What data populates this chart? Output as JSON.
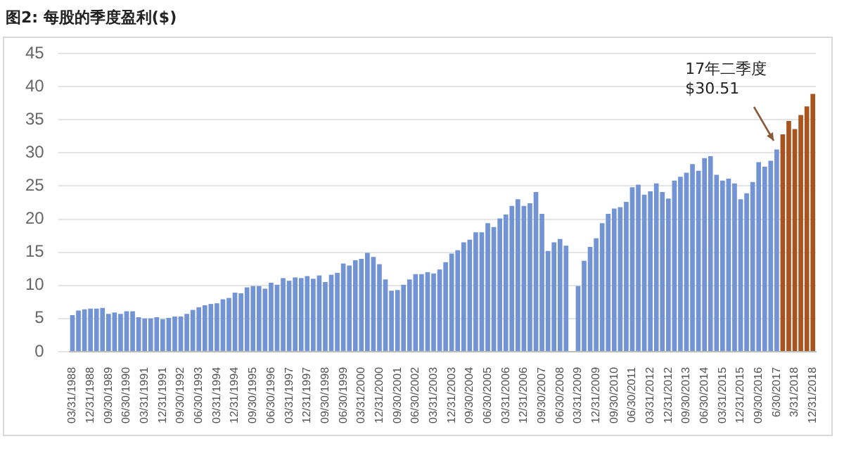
{
  "chart_data": {
    "type": "bar",
    "title": "图2: 每股的季度盈利($)",
    "categories": [
      "03/31/1988",
      null,
      null,
      "12/31/1988",
      null,
      null,
      "09/30/1989",
      null,
      null,
      "06/30/1990",
      null,
      null,
      "03/31/1991",
      null,
      null,
      "12/31/1991",
      null,
      null,
      "09/30/1992",
      null,
      null,
      "06/30/1993",
      null,
      null,
      "03/31/1994",
      null,
      null,
      "12/31/1994",
      null,
      null,
      "09/30/1995",
      null,
      null,
      "06/30/1996",
      null,
      null,
      "03/31/1997",
      null,
      null,
      "12/31/1997",
      null,
      null,
      "09/30/1998",
      null,
      null,
      "06/30/1999",
      null,
      null,
      "03/31/2000",
      null,
      null,
      "12/31/2000",
      null,
      null,
      "09/30/2001",
      null,
      null,
      "06/30/2002",
      null,
      null,
      "03/31/2003",
      null,
      null,
      "12/31/2003",
      null,
      null,
      "09/30/2004",
      null,
      null,
      "06/30/2005",
      null,
      null,
      "03/31/2006",
      null,
      null,
      "12/31/2006",
      null,
      null,
      "09/30/2007",
      null,
      null,
      "06/30/2008",
      null,
      null,
      "03/31/2009",
      null,
      null,
      "12/31/2009",
      null,
      null,
      "09/30/2010",
      null,
      null,
      "06/30/2011",
      null,
      null,
      "03/31/2012",
      null,
      null,
      "12/31/2012",
      null,
      null,
      "09/30/2013",
      null,
      null,
      "06/30/2014",
      null,
      null,
      "03/31/2015",
      null,
      null,
      "12/31/2015",
      null,
      null,
      "09/30/2016",
      null,
      null,
      "6/30/2017",
      null,
      null,
      "3/31/2018",
      null,
      null,
      "12/31/2018"
    ],
    "values": [
      5.5,
      6.2,
      6.4,
      6.5,
      6.5,
      6.6,
      5.7,
      5.9,
      5.7,
      6.1,
      6.1,
      5.2,
      5.0,
      5.0,
      5.2,
      4.9,
      5.1,
      5.3,
      5.3,
      5.7,
      6.3,
      6.7,
      7.0,
      7.2,
      7.3,
      7.9,
      8.1,
      8.9,
      8.8,
      9.7,
      9.9,
      9.9,
      9.5,
      10.4,
      10.1,
      11.1,
      10.7,
      11.2,
      11.1,
      11.4,
      11.0,
      11.5,
      10.5,
      11.6,
      11.9,
      13.3,
      13.0,
      13.8,
      14.0,
      14.9,
      14.3,
      13.2,
      10.9,
      9.2,
      9.3,
      10.1,
      10.9,
      11.7,
      11.7,
      12.0,
      11.8,
      12.4,
      13.5,
      14.8,
      15.3,
      16.5,
      16.9,
      18.0,
      18.0,
      19.4,
      18.8,
      20.1,
      20.7,
      22.0,
      23.0,
      22.0,
      22.4,
      24.1,
      20.8,
      15.2,
      16.5,
      17.0,
      16.0,
      null,
      9.9,
      13.7,
      15.8,
      17.1,
      19.4,
      20.8,
      21.6,
      21.8,
      22.6,
      24.8,
      25.2,
      23.7,
      24.2,
      25.4,
      24.1,
      23.1,
      25.8,
      26.4,
      27.0,
      28.3,
      27.3,
      29.2,
      29.5,
      26.7,
      25.8,
      26.1,
      25.4,
      23.0,
      23.9,
      25.6,
      28.6,
      27.9,
      28.8,
      30.51,
      32.8,
      34.8,
      33.6,
      35.7,
      37.0,
      38.9
    ],
    "colors": [
      "#7394d4",
      "#7394d4",
      "#7394d4",
      "#7394d4",
      "#7394d4",
      "#7394d4",
      "#7394d4",
      "#7394d4",
      "#7394d4",
      "#7394d4",
      "#7394d4",
      "#7394d4",
      "#7394d4",
      "#7394d4",
      "#7394d4",
      "#7394d4",
      "#7394d4",
      "#7394d4",
      "#7394d4",
      "#7394d4",
      "#7394d4",
      "#7394d4",
      "#7394d4",
      "#7394d4",
      "#7394d4",
      "#7394d4",
      "#7394d4",
      "#7394d4",
      "#7394d4",
      "#7394d4",
      "#7394d4",
      "#7394d4",
      "#7394d4",
      "#7394d4",
      "#7394d4",
      "#7394d4",
      "#7394d4",
      "#7394d4",
      "#7394d4",
      "#7394d4",
      "#7394d4",
      "#7394d4",
      "#7394d4",
      "#7394d4",
      "#7394d4",
      "#7394d4",
      "#7394d4",
      "#7394d4",
      "#7394d4",
      "#7394d4",
      "#7394d4",
      "#7394d4",
      "#7394d4",
      "#7394d4",
      "#7394d4",
      "#7394d4",
      "#7394d4",
      "#7394d4",
      "#7394d4",
      "#7394d4",
      "#7394d4",
      "#7394d4",
      "#7394d4",
      "#7394d4",
      "#7394d4",
      "#7394d4",
      "#7394d4",
      "#7394d4",
      "#7394d4",
      "#7394d4",
      "#7394d4",
      "#7394d4",
      "#7394d4",
      "#7394d4",
      "#7394d4",
      "#7394d4",
      "#7394d4",
      "#7394d4",
      "#7394d4",
      "#7394d4",
      "#7394d4",
      "#7394d4",
      "#7394d4",
      "#7394d4",
      "#7394d4",
      "#7394d4",
      "#7394d4",
      "#7394d4",
      "#7394d4",
      "#7394d4",
      "#7394d4",
      "#7394d4",
      "#7394d4",
      "#7394d4",
      "#7394d4",
      "#7394d4",
      "#7394d4",
      "#7394d4",
      "#7394d4",
      "#7394d4",
      "#7394d4",
      "#7394d4",
      "#7394d4",
      "#7394d4",
      "#7394d4",
      "#7394d4",
      "#7394d4",
      "#7394d4",
      "#7394d4",
      "#7394d4",
      "#7394d4",
      "#7394d4",
      "#7394d4",
      "#7394d4",
      "#7394d4",
      "#7394d4",
      "#7394d4",
      "#7394d4",
      "#a9531f",
      "#a9531f",
      "#a9531f",
      "#a9531f",
      "#a9531f",
      "#a9531f"
    ],
    "ylim": [
      0,
      45
    ],
    "yticks": [
      0,
      5,
      10,
      15,
      20,
      25,
      30,
      35,
      40,
      45
    ],
    "grid": "y",
    "legend": false,
    "annotations": [
      {
        "text": "17年二季度\n$30.51",
        "x": "6/30/2017",
        "y": 30.51
      }
    ]
  }
}
